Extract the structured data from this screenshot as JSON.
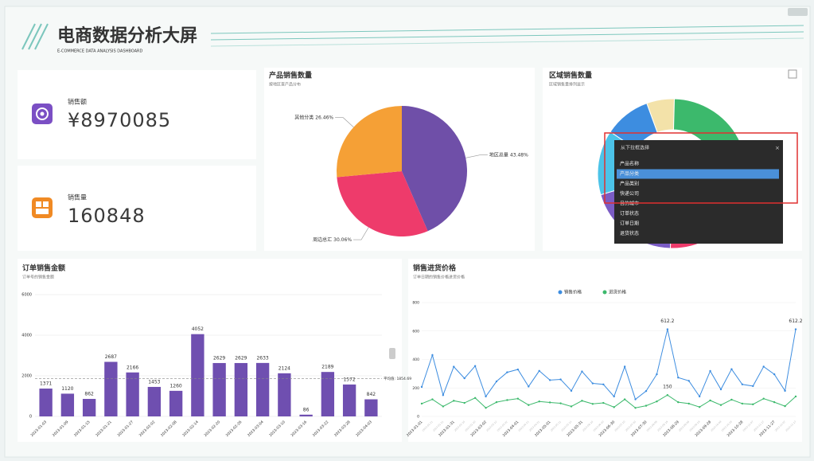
{
  "header": {
    "title": "电商数据分析大屏",
    "subtitle": "E-COMMERCE DATA ANALYSIS DASHBOARD"
  },
  "kpis": [
    {
      "label": "销售额",
      "value": "¥8970085"
    },
    {
      "label": "销售量",
      "value": "160848"
    }
  ],
  "chart_data": [
    {
      "type": "pie",
      "title": "产品销售数量",
      "subtitle": "按地区查产品分布",
      "categories": [
        "地区总量",
        "周边总汇",
        "其他分类"
      ],
      "values": [
        43.48,
        30.06,
        26.46
      ],
      "value_labels": [
        "43.48%",
        "30.06%",
        "26.46%"
      ],
      "colors": [
        "#6f4fa8",
        "#ee3b6b",
        "#f5a036"
      ]
    },
    {
      "type": "donut",
      "title": "区域销售数量",
      "subtitle": "区域销售量排列显示",
      "values": [
        6,
        18,
        12,
        20,
        20,
        14,
        10
      ],
      "colors": [
        "#f3e2a9",
        "#3cb96c",
        "#f5a036",
        "#ee3b6b",
        "#7b5cc4",
        "#4cc3e8",
        "#3d8de0"
      ],
      "menu": {
        "title": "从下拉框选择",
        "items": [
          "产品名称",
          "产品分类",
          "产品类别",
          "快递公司",
          "目的城市",
          "订单状态",
          "订单日期",
          "退货状态"
        ],
        "selected": 1
      }
    },
    {
      "type": "bar",
      "title": "订单销售金额",
      "subtitle": "订单号的销售金额",
      "categories": [
        "2023-01-03",
        "2023-01-09",
        "2023-01-15",
        "2023-01-21",
        "2023-01-27",
        "2023-02-02",
        "2023-02-08",
        "2023-02-14",
        "2023-02-20",
        "2023-02-26",
        "2023-03-04",
        "2023-03-10",
        "2023-03-16",
        "2023-03-22",
        "2023-03-28",
        "2023-04-03"
      ],
      "values": [
        1371,
        1120,
        862,
        2687,
        2166,
        1453,
        1260,
        4052,
        2629,
        2629,
        2633,
        2124,
        86,
        2189,
        1572,
        842
      ],
      "color": "#6f4fb0",
      "ylim": [
        0,
        6000
      ],
      "yticks": [
        0,
        2000,
        4000,
        6000
      ],
      "average": {
        "value": 1854.69,
        "label": "平均值: 1854.69"
      }
    },
    {
      "type": "line",
      "title": "销售进货价格",
      "subtitle": "订单日期的销售价格进货价格",
      "categories": [
        "2023-01-01",
        "2023-01-11",
        "2023-01-21",
        "2023-01-31",
        "2023-02-10",
        "2023-02-20",
        "2023-03-02",
        "2023-03-12",
        "2023-03-22",
        "2023-04-01",
        "2023-04-11",
        "2023-04-21",
        "2023-05-01",
        "2023-05-11",
        "2023-05-21",
        "2023-05-31",
        "2023-06-10",
        "2023-06-20",
        "2023-06-30",
        "2023-07-10",
        "2023-07-20",
        "2023-07-30",
        "2023-08-09",
        "2023-08-19",
        "2023-08-29",
        "2023-09-08",
        "2023-09-18",
        "2023-09-28",
        "2023-10-08",
        "2023-10-18",
        "2023-10-28",
        "2023-11-07",
        "2023-11-17",
        "2023-11-27",
        "2023-12-07",
        "2023-12-17"
      ],
      "series": [
        {
          "name": "销售价格",
          "color": "#3d8de0",
          "values": [
            207,
            431,
            150,
            349,
            268,
            354,
            140,
            246,
            310,
            330,
            210,
            320,
            255,
            260,
            180,
            316,
            232,
            225,
            140,
            350,
            120,
            178,
            296,
            612.2,
            273,
            250,
            140,
            319,
            190,
            332,
            225,
            213,
            350,
            296,
            180,
            612.2
          ]
        },
        {
          "name": "进货价格",
          "color": "#3cb96c",
          "values": [
            90,
            120,
            70,
            110,
            95,
            130,
            60,
            100,
            115,
            125,
            80,
            105,
            98,
            92,
            70,
            110,
            88,
            95,
            65,
            120,
            60,
            75,
            105,
            150,
            100,
            90,
            66,
            112,
            80,
            118,
            90,
            85,
            125,
            100,
            72,
            140
          ]
        }
      ],
      "ylim": [
        0,
        800
      ],
      "yticks": [
        0,
        200,
        400,
        600,
        800
      ],
      "legend": "top"
    }
  ]
}
